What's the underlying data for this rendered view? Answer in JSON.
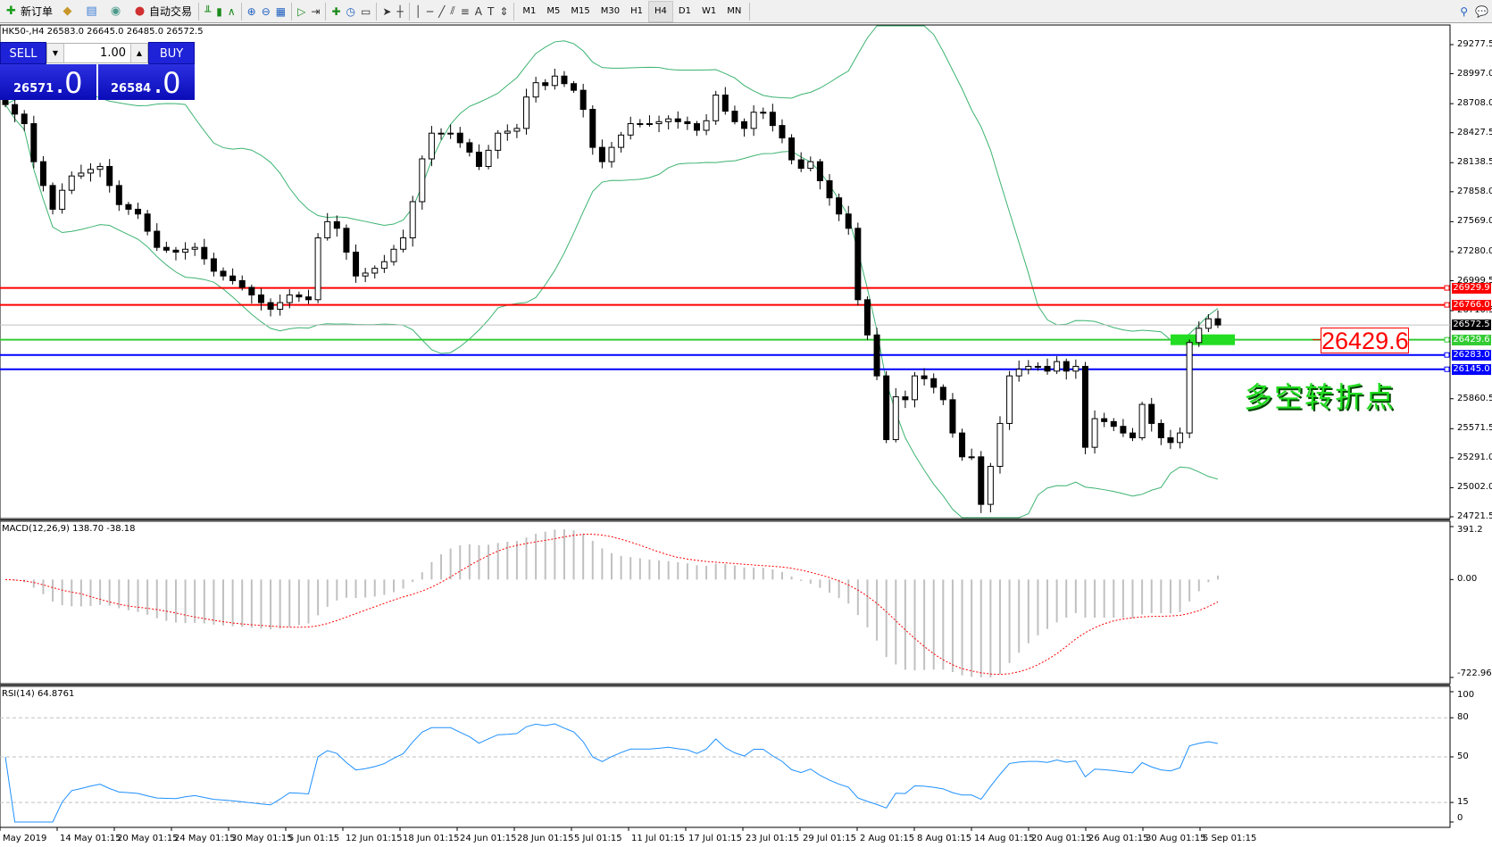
{
  "toolbar": {
    "left": [
      {
        "name": "new-order-button",
        "icon": "✚",
        "label": "新订单",
        "color": "#1a9c1a"
      },
      {
        "name": "history-center-button",
        "icon": "◆",
        "label": "",
        "color": "#c8962a"
      },
      {
        "name": "market-watch-button",
        "icon": "▤",
        "label": "",
        "color": "#3a7bd5"
      },
      {
        "name": "signals-button",
        "icon": "◉",
        "label": "",
        "color": "#4a9a8a"
      },
      {
        "name": "auto-trading-button",
        "icon": "●",
        "label": "自动交易",
        "color": "#d03030"
      }
    ],
    "chart_tools": [
      {
        "name": "bar-chart-icon",
        "icon": "╨"
      },
      {
        "name": "candlestick-chart-icon",
        "icon": "▮"
      },
      {
        "name": "line-chart-icon",
        "icon": "∧"
      },
      {
        "name": "zoom-in-icon",
        "icon": "⊕"
      },
      {
        "name": "zoom-out-icon",
        "icon": "⊖"
      },
      {
        "name": "tile-windows-icon",
        "icon": "▦"
      },
      {
        "name": "auto-scroll-icon",
        "icon": "▷"
      },
      {
        "name": "chart-shift-icon",
        "icon": "⇥"
      },
      {
        "name": "indicators-icon",
        "icon": "✚"
      },
      {
        "name": "periods-clock-icon",
        "icon": "◷"
      },
      {
        "name": "templates-icon",
        "icon": "▭"
      },
      {
        "name": "cursor-icon",
        "icon": "➤"
      },
      {
        "name": "crosshair-icon",
        "icon": "┼"
      },
      {
        "name": "vertical-line-icon",
        "icon": "│"
      },
      {
        "name": "horizontal-line-icon",
        "icon": "─"
      },
      {
        "name": "trendline-icon",
        "icon": "╱"
      },
      {
        "name": "equidistant-channel-icon",
        "icon": "⫽"
      },
      {
        "name": "fibonacci-icon",
        "icon": "≡"
      },
      {
        "name": "text-icon",
        "icon": "A"
      },
      {
        "name": "text-label-icon",
        "icon": "T"
      },
      {
        "name": "arrows-icon",
        "icon": "⇕"
      }
    ],
    "timeframes": [
      "M1",
      "M5",
      "M15",
      "M30",
      "H1",
      "H4",
      "D1",
      "W1",
      "MN"
    ],
    "active_timeframe": "H4",
    "right": [
      {
        "name": "search-icon",
        "icon": "⚲"
      },
      {
        "name": "chat-icon",
        "icon": "💬"
      }
    ]
  },
  "chart": {
    "header": "HK50-,H4  26583.0 26645.0 26485.0 26572.5",
    "symbol": "HK50-",
    "timeframe": "H4",
    "ohlc": {
      "open": 26583.0,
      "high": 26645.0,
      "low": 26485.0,
      "close": 26572.5
    },
    "price_axis": [
      "29277.5",
      "28997.0",
      "28708.0",
      "28427.5",
      "28138.5",
      "27858.0",
      "27569.0",
      "27280.0",
      "26999.5",
      "26710.5",
      "25860.5",
      "25571.5",
      "25291.0",
      "25002.0",
      "24721.5"
    ],
    "price_range": [
      24721.5,
      29277.5
    ],
    "horizontal_lines": [
      {
        "price": 26929.9,
        "label": "26929.9",
        "color": "#ff0000"
      },
      {
        "price": 26766.0,
        "label": "26766.0",
        "color": "#ff0000"
      },
      {
        "price": 26429.6,
        "label": "26429.6",
        "color": "#33cc33"
      },
      {
        "price": 26283.0,
        "label": "26283.0",
        "color": "#0000ff"
      },
      {
        "price": 26145.0,
        "label": "26145.0",
        "color": "#0000ff"
      }
    ],
    "current_price": {
      "price": 26572.5,
      "label": "26572.5",
      "color": "#000000"
    },
    "price_label_box": "26429.6",
    "annotation": "多空转折点",
    "bull_color": "#ffffff",
    "bear_color": "#000000",
    "band_color": "#3cb371",
    "closes": [
      28699,
      28607,
      28515,
      28148,
      27918,
      27689,
      27872,
      28010,
      28038,
      28074,
      28102,
      27918,
      27734,
      27689,
      27643,
      27477,
      27321,
      27294,
      27275,
      27303,
      27321,
      27211,
      27091,
      27045,
      27000,
      26935,
      26862,
      26788,
      26724,
      26788,
      26862,
      26843,
      26816,
      27413,
      27569,
      27505,
      27275,
      27045,
      27073,
      27119,
      27183,
      27303,
      27413,
      27762,
      28175,
      28423,
      28423,
      28423,
      28331,
      28240,
      28102,
      28258,
      28423,
      28442,
      28469,
      28772,
      28910,
      28883,
      28974,
      28901,
      28837,
      28653,
      28286,
      28148,
      28286,
      28405,
      28515,
      28515,
      28515,
      28534,
      28561,
      28534,
      28515,
      28451,
      28543,
      28791,
      28635,
      28534,
      28469,
      28625,
      28625,
      28497,
      28377,
      28166,
      28084,
      28148,
      27964,
      27799,
      27643,
      27505,
      26816,
      26476,
      26081,
      25466,
      25879,
      25851,
      26081,
      26054,
      25971,
      25851,
      25530,
      25300,
      25300,
      24841,
      25208,
      25622,
      26081,
      26145,
      26173,
      26173,
      26127,
      26219,
      26127,
      26173,
      25392,
      25668,
      25640,
      25594,
      25530,
      25484,
      25806,
      25622,
      25484,
      25438,
      25530,
      26403,
      26540,
      26632,
      26572.5
    ]
  },
  "trade_panel": {
    "sell_label": "SELL",
    "buy_label": "BUY",
    "lot": "1.00",
    "sell_price_main": "26571",
    "sell_price_frac": ".0",
    "buy_price_main": "26584",
    "buy_price_frac": ".0"
  },
  "macd": {
    "label": "MACD(12,26,9) 138.70 -38.18",
    "axis": [
      "391.2",
      "0.00",
      "-722.96"
    ],
    "range": [
      -722.96,
      391.2
    ],
    "histogram_color": "#c0c0c0",
    "signal_color": "#ff0000"
  },
  "rsi": {
    "label": "RSI(14) 64.8761",
    "axis": [
      "100",
      "80",
      "50",
      "15",
      "0"
    ],
    "levels": [
      80,
      50,
      15
    ],
    "line_color": "#1e90ff"
  },
  "time_axis": [
    "May 2019",
    "14 May 01:15",
    "20 May 01:15",
    "24 May 01:15",
    "30 May 01:15",
    "5 Jun 01:15",
    "12 Jun 01:15",
    "18 Jun 01:15",
    "24 Jun 01:15",
    "28 Jun 01:15",
    "5 Jul 01:15",
    "11 Jul 01:15",
    "17 Jul 01:15",
    "23 Jul 01:15",
    "29 Jul 01:15",
    "2 Aug 01:15",
    "8 Aug 01:15",
    "14 Aug 01:15",
    "20 Aug 01:15",
    "26 Aug 01:15",
    "30 Aug 01:15",
    "5 Sep 01:15"
  ]
}
